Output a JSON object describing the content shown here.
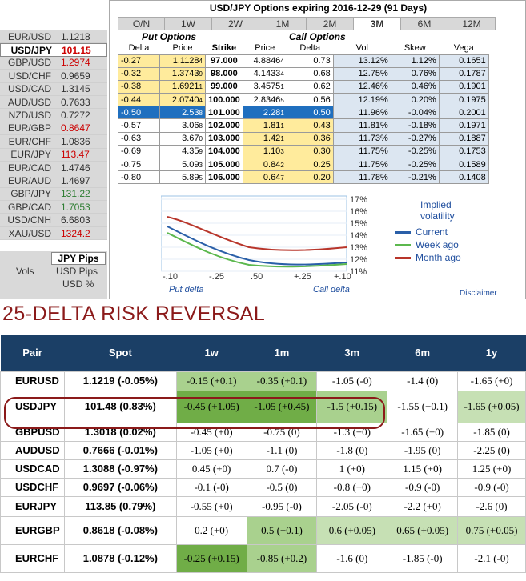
{
  "title": "USD/JPY Options expiring 2016-12-29 (91 Days)",
  "tabs": [
    "O/N",
    "1W",
    "2W",
    "1M",
    "2M",
    "3M",
    "6M",
    "12M"
  ],
  "active_tab": "3M",
  "sidebar": [
    {
      "name": "EUR/USD",
      "value": "1.1218",
      "color": "#333333"
    },
    {
      "name": "USD/JPY",
      "value": "101.15",
      "color": "#cc0000",
      "selected": true
    },
    {
      "name": "GBP/USD",
      "value": "1.2974",
      "color": "#cc0000"
    },
    {
      "name": "USD/CHF",
      "value": "0.9659",
      "color": "#333333"
    },
    {
      "name": "USD/CAD",
      "value": "1.3145",
      "color": "#333333"
    },
    {
      "name": "AUD/USD",
      "value": "0.7633",
      "color": "#333333"
    },
    {
      "name": "NZD/USD",
      "value": "0.7272",
      "color": "#333333"
    },
    {
      "name": "EUR/GBP",
      "value": "0.8647",
      "color": "#cc0000"
    },
    {
      "name": "EUR/CHF",
      "value": "1.0836",
      "color": "#333333"
    },
    {
      "name": "EUR/JPY",
      "value": "113.47",
      "color": "#cc0000"
    },
    {
      "name": "EUR/CAD",
      "value": "1.4746",
      "color": "#333333"
    },
    {
      "name": "EUR/AUD",
      "value": "1.4697",
      "color": "#333333"
    },
    {
      "name": "GBP/JPY",
      "value": "131.22",
      "color": "#2e7d32"
    },
    {
      "name": "GBP/CAD",
      "value": "1.7053",
      "color": "#2e7d32"
    },
    {
      "name": "USD/CNH",
      "value": "6.6803",
      "color": "#333333"
    },
    {
      "name": "XAU/USD",
      "value": "1324.2",
      "color": "#cc0000"
    }
  ],
  "pips": {
    "header": "JPY Pips",
    "vols_label": "Vols",
    "opt1": "USD Pips",
    "opt2": "USD %"
  },
  "groups": {
    "put": "Put Options",
    "call": "Call Options"
  },
  "headers": [
    "Delta",
    "Price",
    "Strike",
    "Price",
    "Delta",
    "Vol",
    "Skew",
    "Vega"
  ],
  "rows": [
    [
      "-0.27",
      "1.1128",
      "4",
      "97.000",
      "4.8846",
      "4",
      "0.73",
      "13.12%",
      "1.12%",
      "0.1651"
    ],
    [
      "-0.32",
      "1.3743",
      "9",
      "98.000",
      "4.1433",
      "4",
      "0.68",
      "12.75%",
      "0.76%",
      "0.1787"
    ],
    [
      "-0.38",
      "1.6921",
      "1",
      "99.000",
      "3.4575",
      "1",
      "0.62",
      "12.46%",
      "0.46%",
      "0.1901"
    ],
    [
      "-0.44",
      "2.0740",
      "4",
      "100.000",
      "2.8346",
      "5",
      "0.56",
      "12.19%",
      "0.20%",
      "0.1975"
    ],
    [
      "-0.50",
      "2.53",
      "8",
      "101.000",
      "2.28",
      "1",
      "0.50",
      "11.96%",
      "-0.04%",
      "0.2001"
    ],
    [
      "-0.57",
      "3.06",
      "8",
      "102.000",
      "1.81",
      "1",
      "0.43",
      "11.81%",
      "-0.18%",
      "0.1971"
    ],
    [
      "-0.63",
      "3.67",
      "0",
      "103.000",
      "1.42",
      "1",
      "0.36",
      "11.73%",
      "-0.27%",
      "0.1887"
    ],
    [
      "-0.69",
      "4.35",
      "9",
      "104.000",
      "1.10",
      "3",
      "0.30",
      "11.75%",
      "-0.25%",
      "0.1753"
    ],
    [
      "-0.75",
      "5.09",
      "3",
      "105.000",
      "0.84",
      "2",
      "0.25",
      "11.75%",
      "-0.25%",
      "0.1589"
    ],
    [
      "-0.80",
      "5.89",
      "5",
      "106.000",
      "0.64",
      "7",
      "0.20",
      "11.78%",
      "-0.21%",
      "0.1408"
    ]
  ],
  "chart": {
    "y_ticks": [
      "17%",
      "16%",
      "15%",
      "14%",
      "13%",
      "12%",
      "11%"
    ],
    "x_ticks": [
      "-.10",
      "-.25",
      ".50",
      "+.25",
      "+.10"
    ],
    "x_left": "Put delta",
    "x_right": "Call delta"
  },
  "legend": {
    "title1": "Implied",
    "title2": "volatility",
    "items": [
      {
        "label": "Current",
        "color": "#2a5fa8"
      },
      {
        "label": "Week ago",
        "color": "#5cb84e"
      },
      {
        "label": "Month ago",
        "color": "#b8352a"
      }
    ]
  },
  "disclaimer": "Disclaimer",
  "rr_title": "25-DELTA RISK REVERSAL",
  "rr_headers": [
    "Pair",
    "Spot",
    "1w",
    "1m",
    "3m",
    "6m",
    "1y"
  ],
  "rr_rows": [
    {
      "pair": "EURUSD",
      "spot": "1.1219 (-0.05%)",
      "v": [
        "-0.15 (+0.1)",
        "-0.35 (+0.1)",
        "-1.05 (-0)",
        "-1.4 (0)",
        "-1.65 (+0)"
      ],
      "c": [
        "g2",
        "g2",
        "",
        "",
        ""
      ]
    },
    {
      "pair": "USDJPY",
      "spot": "101.48 (0.83%)",
      "v": [
        "-0.45 (+1.05)",
        "-1.05 (+0.45)",
        "-1.5 (+0.15)",
        "-1.55 (+0.1)",
        "-1.65 (+0.05)"
      ],
      "c": [
        "g3",
        "g3",
        "g2",
        "",
        "g1"
      ]
    },
    {
      "pair": "GBPUSD",
      "spot": "1.3018 (0.02%)",
      "v": [
        "-0.45 (+0)",
        "-0.75 (0)",
        "-1.3 (+0)",
        "-1.65 (+0)",
        "-1.85 (0)"
      ],
      "c": [
        "",
        "",
        "",
        "",
        ""
      ]
    },
    {
      "pair": "AUDUSD",
      "spot": "0.7666 (-0.01%)",
      "v": [
        "-1.05 (+0)",
        "-1.1 (0)",
        "-1.8 (0)",
        "-1.95 (0)",
        "-2.25 (0)"
      ],
      "c": [
        "",
        "",
        "",
        "",
        ""
      ]
    },
    {
      "pair": "USDCAD",
      "spot": "1.3088 (-0.97%)",
      "v": [
        "0.45 (+0)",
        "0.7 (-0)",
        "1 (+0)",
        "1.15 (+0)",
        "1.25 (+0)"
      ],
      "c": [
        "",
        "",
        "",
        "",
        ""
      ]
    },
    {
      "pair": "USDCHF",
      "spot": "0.9697 (-0.06%)",
      "v": [
        "-0.1 (-0)",
        "-0.5 (0)",
        "-0.8 (+0)",
        "-0.9 (-0)",
        "-0.9 (-0)"
      ],
      "c": [
        "",
        "",
        "",
        "",
        ""
      ]
    },
    {
      "pair": "EURJPY",
      "spot": "113.85 (0.79%)",
      "v": [
        "-0.55 (+0)",
        "-0.95 (-0)",
        "-2.05 (-0)",
        "-2.2 (+0)",
        "-2.6 (0)"
      ],
      "c": [
        "",
        "",
        "",
        "",
        ""
      ]
    },
    {
      "pair": "EURGBP",
      "spot": "0.8618 (-0.08%)",
      "v": [
        "0.2 (+0)",
        "0.5 (+0.1)",
        "0.6 (+0.05)",
        "0.65 (+0.05)",
        "0.75 (+0.05)"
      ],
      "c": [
        "",
        "g2",
        "g1",
        "g1",
        "g1"
      ]
    },
    {
      "pair": "EURCHF",
      "spot": "1.0878 (-0.12%)",
      "v": [
        "-0.25 (+0.15)",
        "-0.85 (+0.2)",
        "-1.6 (0)",
        "-1.85 (-0)",
        "-2.1 (-0)"
      ],
      "c": [
        "g3",
        "g2",
        "",
        "",
        ""
      ]
    }
  ]
}
